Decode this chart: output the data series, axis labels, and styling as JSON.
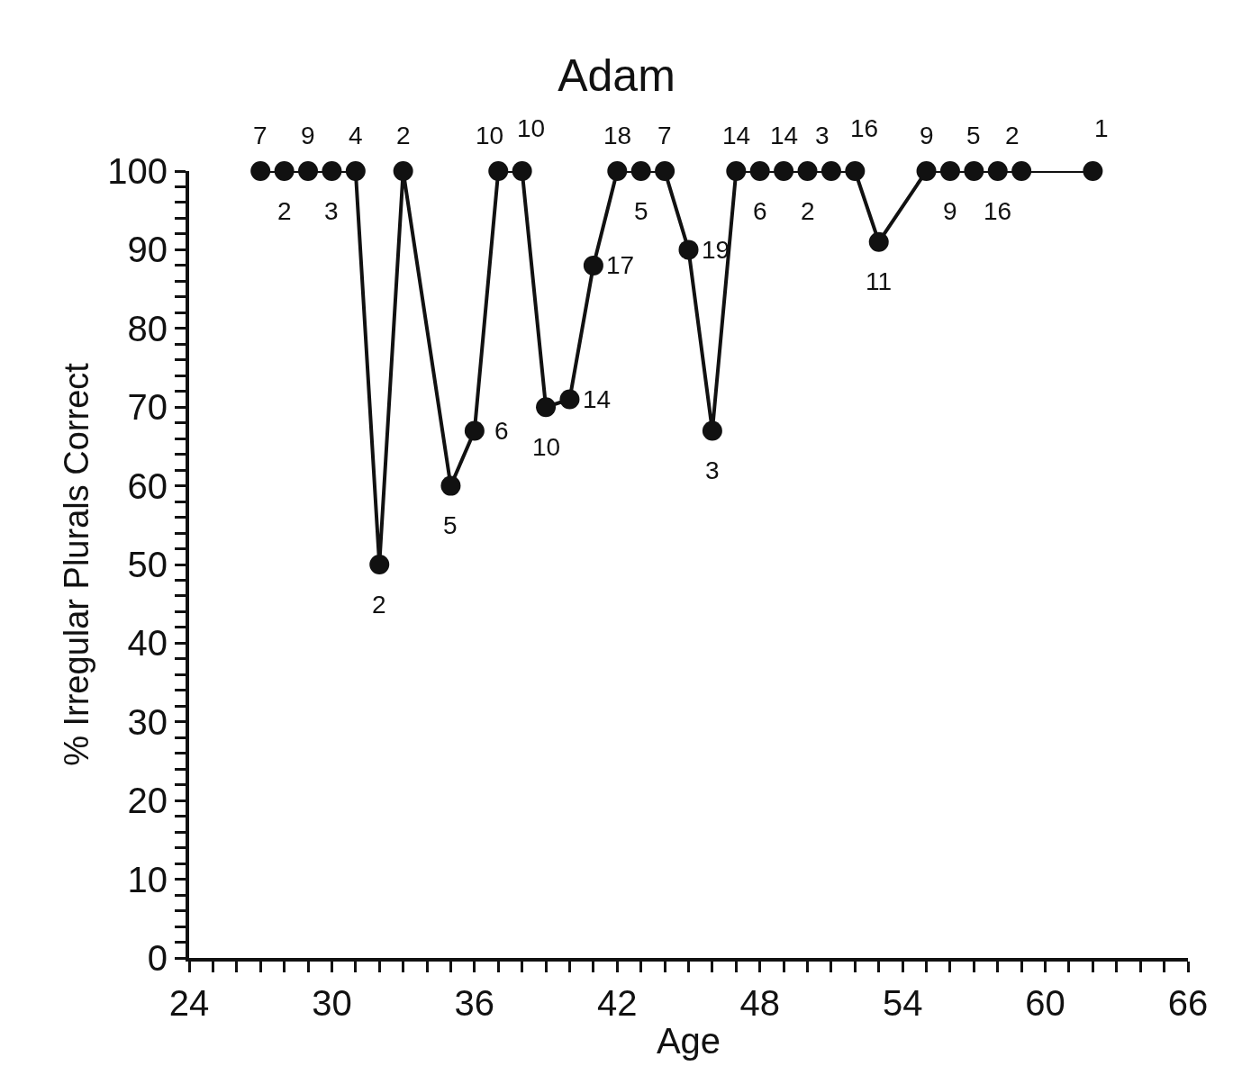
{
  "chart_data": {
    "type": "line",
    "title": "Adam",
    "xlabel": "Age",
    "ylabel": "% Irregular Plurals Correct",
    "x": [
      27,
      28,
      29,
      30,
      31,
      32,
      33,
      35,
      36,
      37,
      38,
      39,
      40,
      41,
      42,
      43,
      44,
      45,
      46,
      47,
      48,
      49,
      50,
      51,
      52,
      53,
      55,
      56,
      57,
      58,
      59,
      62
    ],
    "series": [
      {
        "color": "#111111",
        "values": [
          100,
          100,
          100,
          100,
          100,
          50,
          100,
          60,
          67,
          100,
          100,
          70,
          71,
          88,
          100,
          100,
          100,
          90,
          67,
          100,
          100,
          100,
          100,
          100,
          100,
          91,
          100,
          100,
          100,
          100,
          100,
          100
        ]
      }
    ],
    "marker": "circle",
    "line_style": "solid",
    "grid": false,
    "xlim": [
      24,
      66
    ],
    "xticks": [
      24,
      {
        "value": 25,
        "label": null
      },
      {
        "value": 26,
        "label": null
      },
      {
        "value": 27,
        "label": null
      },
      {
        "value": 28,
        "label": null
      },
      {
        "value": 29,
        "label": null
      },
      30,
      {
        "value": 31,
        "label": null
      },
      {
        "value": 32,
        "label": null
      },
      {
        "value": 33,
        "label": null
      },
      {
        "value": 34,
        "label": null
      },
      {
        "value": 35,
        "label": null
      },
      36,
      {
        "value": 37,
        "label": null
      },
      {
        "value": 38,
        "label": null
      },
      {
        "value": 39,
        "label": null
      },
      {
        "value": 40,
        "label": null
      },
      {
        "value": 41,
        "label": null
      },
      42,
      {
        "value": 43,
        "label": null
      },
      {
        "value": 44,
        "label": null
      },
      {
        "value": 45,
        "label": null
      },
      {
        "value": 46,
        "label": null
      },
      {
        "value": 47,
        "label": null
      },
      48,
      {
        "value": 49,
        "label": null
      },
      {
        "value": 50,
        "label": null
      },
      {
        "value": 51,
        "label": null
      },
      {
        "value": 52,
        "label": null
      },
      {
        "value": 53,
        "label": null
      },
      54,
      {
        "value": 55,
        "label": null
      },
      {
        "value": 56,
        "label": null
      },
      {
        "value": 57,
        "label": null
      },
      {
        "value": 58,
        "label": null
      },
      {
        "value": 59,
        "label": null
      },
      60,
      {
        "value": 61,
        "label": null
      },
      {
        "value": 62,
        "label": null
      },
      {
        "value": 63,
        "label": null
      },
      {
        "value": 64,
        "label": null
      },
      {
        "value": 65,
        "label": null
      },
      66
    ],
    "ylim": [
      0,
      100
    ],
    "yticks": [
      0,
      {
        "value": 2,
        "label": null
      },
      {
        "value": 4,
        "label": null
      },
      {
        "value": 6,
        "label": null
      },
      {
        "value": 8,
        "label": null
      },
      10,
      {
        "value": 12,
        "label": null
      },
      {
        "value": 14,
        "label": null
      },
      {
        "value": 16,
        "label": null
      },
      {
        "value": 18,
        "label": null
      },
      20,
      {
        "value": 22,
        "label": null
      },
      {
        "value": 24,
        "label": null
      },
      {
        "value": 26,
        "label": null
      },
      {
        "value": 28,
        "label": null
      },
      30,
      {
        "value": 32,
        "label": null
      },
      {
        "value": 34,
        "label": null
      },
      {
        "value": 36,
        "label": null
      },
      {
        "value": 38,
        "label": null
      },
      40,
      {
        "value": 42,
        "label": null
      },
      {
        "value": 44,
        "label": null
      },
      {
        "value": 46,
        "label": null
      },
      {
        "value": 48,
        "label": null
      },
      50,
      {
        "value": 52,
        "label": null
      },
      {
        "value": 54,
        "label": null
      },
      {
        "value": 56,
        "label": null
      },
      {
        "value": 58,
        "label": null
      },
      60,
      {
        "value": 62,
        "label": null
      },
      {
        "value": 64,
        "label": null
      },
      {
        "value": 66,
        "label": null
      },
      {
        "value": 68,
        "label": null
      },
      70,
      {
        "value": 72,
        "label": null
      },
      {
        "value": 74,
        "label": null
      },
      {
        "value": 76,
        "label": null
      },
      {
        "value": 78,
        "label": null
      },
      80,
      {
        "value": 82,
        "label": null
      },
      {
        "value": 84,
        "label": null
      },
      {
        "value": 86,
        "label": null
      },
      {
        "value": 88,
        "label": null
      },
      90,
      {
        "value": 92,
        "label": null
      },
      {
        "value": 94,
        "label": null
      },
      {
        "value": 96,
        "label": null
      },
      {
        "value": 98,
        "label": null
      },
      100
    ],
    "annotations": [
      {
        "text": "7",
        "x": 27,
        "y": 100
      },
      {
        "text": "2",
        "x": 28,
        "y": 100
      },
      {
        "text": "9",
        "x": 29,
        "y": 100
      },
      {
        "text": "3",
        "x": 30,
        "y": 100
      },
      {
        "text": "4",
        "x": 31,
        "y": 100
      },
      {
        "text": "2",
        "x": 32,
        "y": 50
      },
      {
        "text": "2",
        "x": 33,
        "y": 100
      },
      {
        "text": "5",
        "x": 35,
        "y": 60
      },
      {
        "text": "6",
        "x": 36,
        "y": 67
      },
      {
        "text": "10",
        "x": 37,
        "y": 100
      },
      {
        "text": "10",
        "x": 38,
        "y": 100
      },
      {
        "text": "10",
        "x": 39,
        "y": 70
      },
      {
        "text": "14",
        "x": 40,
        "y": 71
      },
      {
        "text": "17",
        "x": 41,
        "y": 88
      },
      {
        "text": "18",
        "x": 42,
        "y": 100
      },
      {
        "text": "5",
        "x": 43,
        "y": 100
      },
      {
        "text": "7",
        "x": 44,
        "y": 100
      },
      {
        "text": "19",
        "x": 45,
        "y": 90
      },
      {
        "text": "3",
        "x": 46,
        "y": 67
      },
      {
        "text": "14",
        "x": 47,
        "y": 100
      },
      {
        "text": "6",
        "x": 48,
        "y": 100
      },
      {
        "text": "14",
        "x": 49,
        "y": 100
      },
      {
        "text": "2",
        "x": 50,
        "y": 100
      },
      {
        "text": "3",
        "x": 51,
        "y": 100
      },
      {
        "text": "16",
        "x": 52,
        "y": 100
      },
      {
        "text": "11",
        "x": 53,
        "y": 91
      },
      {
        "text": "9",
        "x": 55,
        "y": 100
      },
      {
        "text": "9",
        "x": 56,
        "y": 100
      },
      {
        "text": "5",
        "x": 57,
        "y": 100
      },
      {
        "text": "16",
        "x": 58,
        "y": 100
      },
      {
        "text": "2",
        "x": 59,
        "y": 100
      },
      {
        "text": "1",
        "x": 62,
        "y": 100
      }
    ]
  }
}
